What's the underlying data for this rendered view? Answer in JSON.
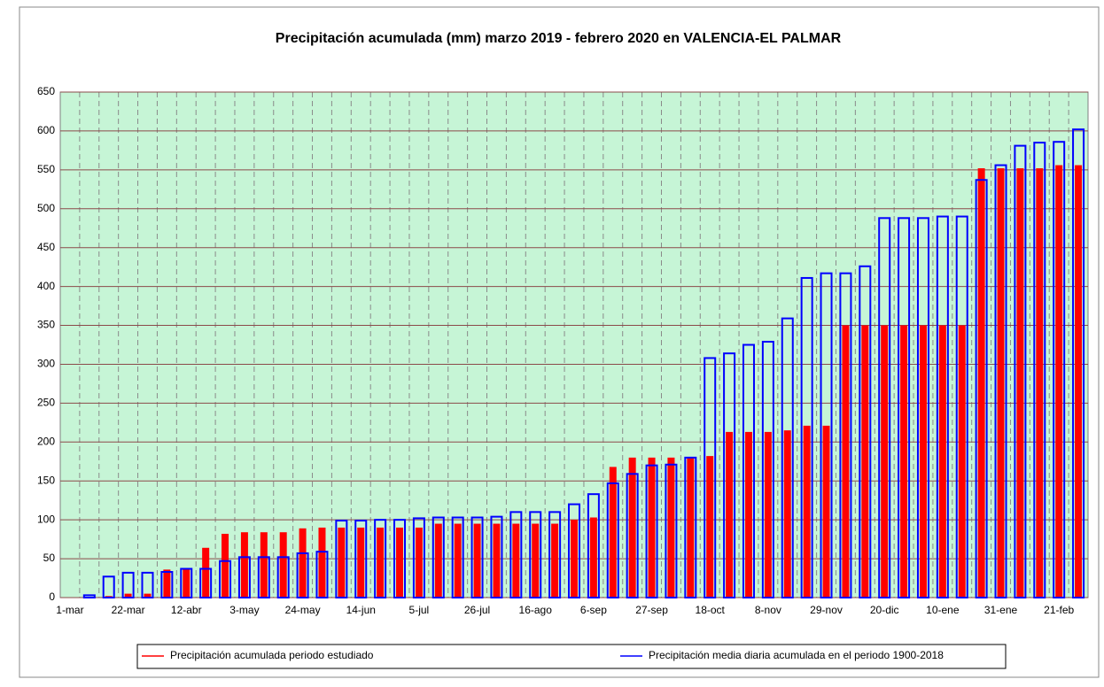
{
  "chart_data": {
    "type": "bar",
    "title": "Precipitación acumulada (mm) marzo 2019 - febrero 2020 en VALENCIA-EL PALMAR",
    "categories": [
      "1-mar",
      null,
      null,
      "22-mar",
      null,
      null,
      "12-abr",
      null,
      null,
      "3-may",
      null,
      null,
      "24-may",
      null,
      null,
      "14-jun",
      null,
      null,
      "5-jul",
      null,
      null,
      "26-jul",
      null,
      null,
      "16-ago",
      null,
      null,
      "6-sep",
      null,
      null,
      "27-sep",
      null,
      null,
      "18-oct",
      null,
      null,
      "8-nov",
      null,
      null,
      "29-nov",
      null,
      null,
      "20-dic",
      null,
      null,
      "10-ene",
      null,
      null,
      "31-ene",
      null,
      null,
      "21-feb",
      null
    ],
    "series": [
      {
        "name": "Precipitación acumulada periodo estudiado",
        "color": "#ff0000",
        "style": "filled",
        "values": [
          0,
          0,
          2,
          5,
          5,
          36,
          37,
          64,
          82,
          84,
          84,
          84,
          89,
          90,
          90,
          90,
          90,
          90,
          90,
          95,
          95,
          95,
          95,
          95,
          95,
          95,
          100,
          103,
          168,
          180,
          180,
          180,
          180,
          182,
          213,
          213,
          213,
          215,
          221,
          221,
          350,
          350,
          350,
          350,
          350,
          350,
          350,
          552,
          552,
          552,
          552,
          556,
          556
        ]
      },
      {
        "name": "Precipitación media diaria acumulada en el periodo 1900-2018",
        "color": "#0000ff",
        "style": "outline",
        "values": [
          0,
          3,
          27,
          32,
          32,
          33,
          37,
          37,
          47,
          52,
          52,
          52,
          57,
          59,
          99,
          99,
          100,
          100,
          102,
          103,
          103,
          103,
          104,
          110,
          110,
          110,
          120,
          133,
          147,
          159,
          170,
          171,
          180,
          308,
          314,
          325,
          329,
          359,
          411,
          417,
          417,
          426,
          488,
          488,
          488,
          490,
          490,
          537,
          556,
          581,
          585,
          586,
          602
        ]
      }
    ],
    "ylim": [
      0,
      650
    ],
    "yticks": [
      0,
      50,
      100,
      150,
      200,
      250,
      300,
      350,
      400,
      450,
      500,
      550,
      600,
      650
    ],
    "grid": true,
    "background": "#c6f5d6",
    "legend": "bottom"
  }
}
